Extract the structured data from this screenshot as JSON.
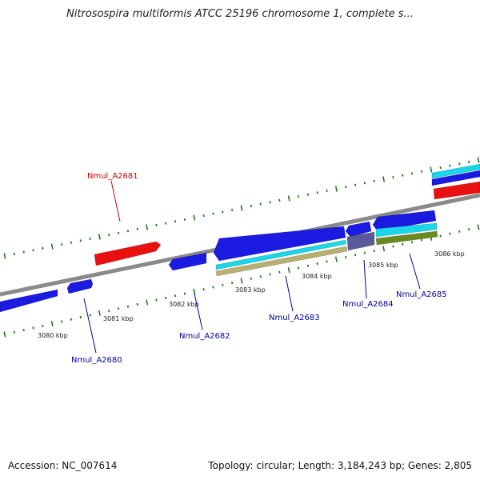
{
  "title": "Nitrosospira multiformis ATCC 25196 chromosome 1, complete s...",
  "footer": {
    "accession": "Accession: NC_007614",
    "summary": "Topology: circular; Length: 3,184,243 bp; Genes: 2,805"
  },
  "colors": {
    "backbone": "#8a8a8a",
    "tick": "#1f7a1f",
    "gene_blue": "#1a1ae0",
    "gene_red": "#e81010",
    "cyan": "#1ad6e8",
    "olive": "#b8b070",
    "slate": "#5a5a9a",
    "green": "#6a8a20",
    "label_blue": "#000099",
    "label_red": "#cc0000"
  },
  "kbp_labels": [
    "3080 kbp",
    "3081 kbp",
    "3082 kbp",
    "3083 kbp",
    "3084 kbp",
    "3085 kbp",
    "3086 kbp"
  ],
  "gene_labels": [
    {
      "name": "Nmul_A2680",
      "color": "label_blue"
    },
    {
      "name": "Nmul_A2681",
      "color": "label_red"
    },
    {
      "name": "Nmul_A2682",
      "color": "label_blue"
    },
    {
      "name": "Nmul_A2683",
      "color": "label_blue"
    },
    {
      "name": "Nmul_A2684",
      "color": "label_blue"
    },
    {
      "name": "Nmul_A2685",
      "color": "label_blue"
    }
  ]
}
